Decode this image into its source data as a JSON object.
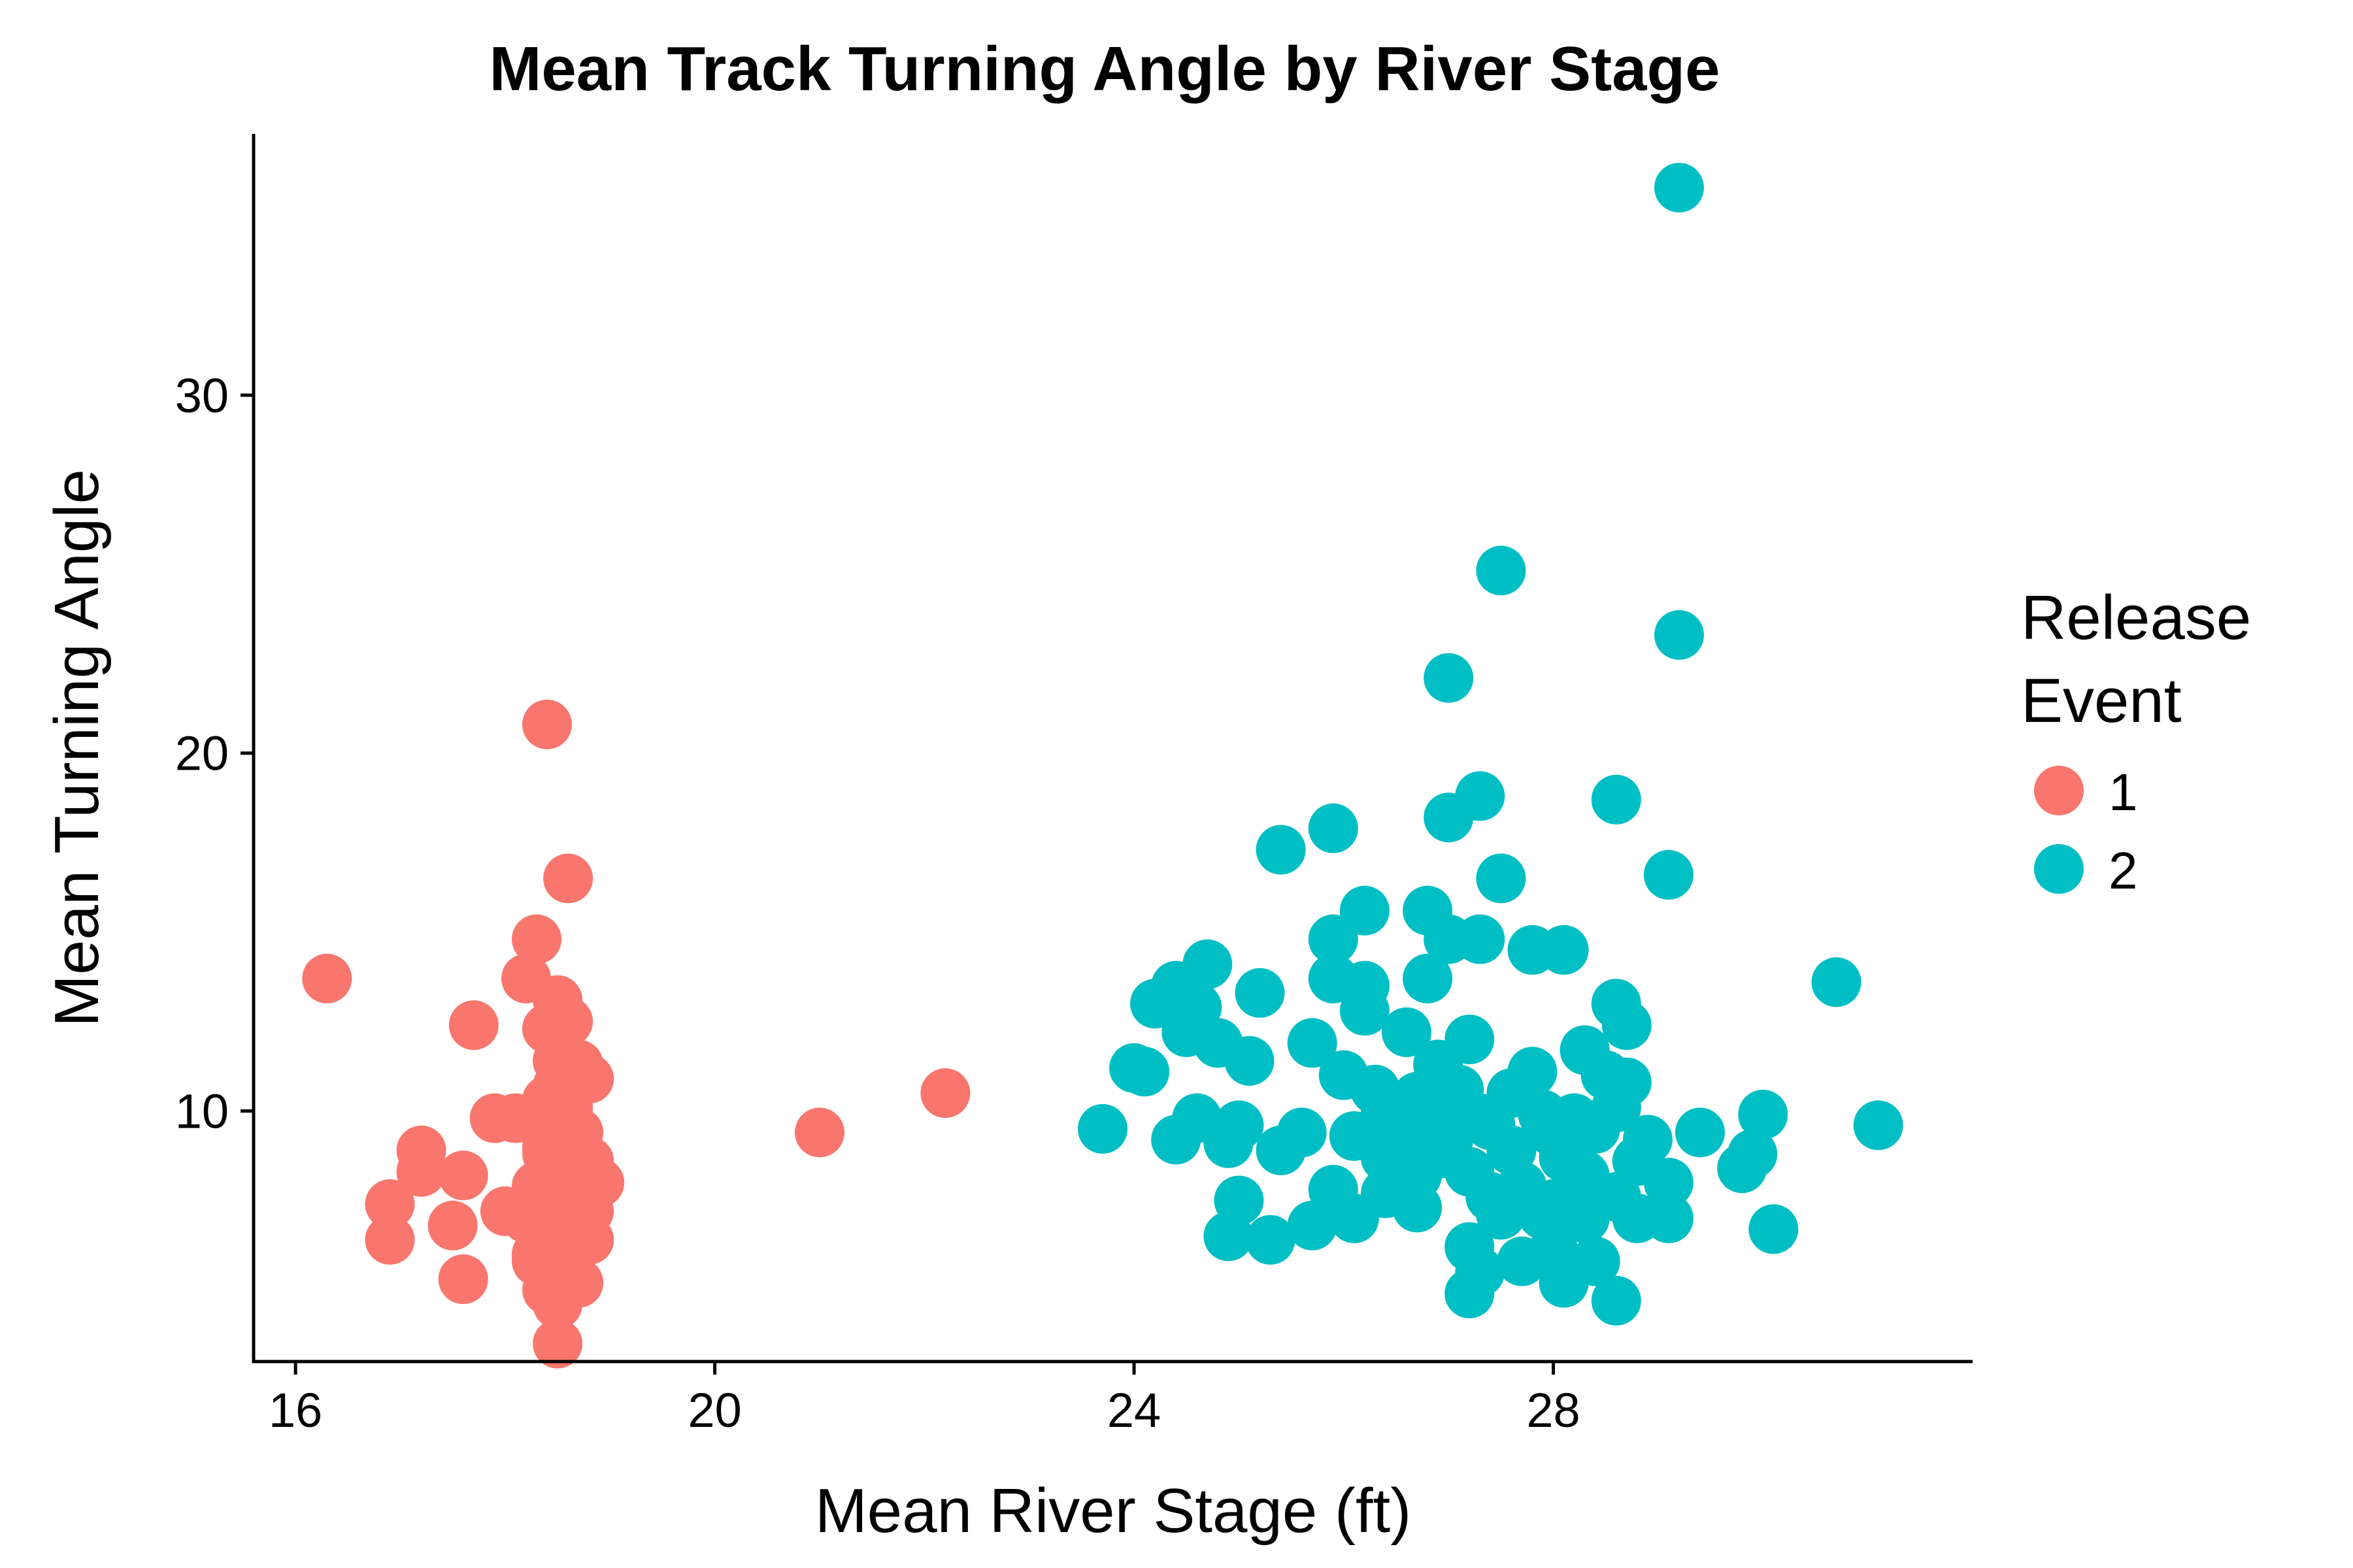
{
  "chart_data": {
    "type": "scatter",
    "title": "Mean Track Turning Angle by River Stage",
    "xlabel": "Mean River Stage (ft)",
    "ylabel": "Mean Turning Angle",
    "xlim": [
      15.6,
      32.0
    ],
    "ylim": [
      3.0,
      37.3
    ],
    "xticks": [
      16,
      20,
      24,
      28
    ],
    "yticks": [
      10,
      20,
      30
    ],
    "grid": false,
    "legend": {
      "title_lines": [
        "Release",
        "Event"
      ],
      "placement": "right"
    },
    "series": [
      {
        "name": "1",
        "color": "#F8766D",
        "points": [
          [
            16.3,
            13.7
          ],
          [
            16.9,
            7.4
          ],
          [
            16.9,
            6.4
          ],
          [
            17.2,
            8.9
          ],
          [
            17.2,
            8.3
          ],
          [
            17.5,
            6.8
          ],
          [
            17.6,
            8.2
          ],
          [
            17.6,
            5.3
          ],
          [
            17.7,
            12.4
          ],
          [
            17.9,
            9.8
          ],
          [
            18.0,
            7.2
          ],
          [
            18.1,
            9.8
          ],
          [
            18.2,
            7.0
          ],
          [
            18.3,
            6.0
          ],
          [
            18.4,
            20.8
          ],
          [
            18.3,
            14.8
          ],
          [
            18.2,
            13.7
          ],
          [
            18.6,
            16.5
          ],
          [
            18.5,
            13.1
          ],
          [
            18.4,
            12.3
          ],
          [
            18.6,
            12.5
          ],
          [
            18.5,
            11.4
          ],
          [
            18.7,
            11.3
          ],
          [
            18.5,
            10.7
          ],
          [
            18.8,
            10.9
          ],
          [
            18.4,
            10.3
          ],
          [
            18.6,
            10.1
          ],
          [
            18.5,
            9.7
          ],
          [
            18.7,
            9.4
          ],
          [
            18.4,
            9.0
          ],
          [
            18.6,
            8.7
          ],
          [
            18.8,
            8.6
          ],
          [
            18.9,
            8.0
          ],
          [
            18.5,
            8.3
          ],
          [
            18.3,
            7.9
          ],
          [
            18.6,
            7.6
          ],
          [
            18.8,
            7.2
          ],
          [
            18.4,
            7.0
          ],
          [
            18.6,
            6.6
          ],
          [
            18.8,
            6.4
          ],
          [
            18.5,
            6.1
          ],
          [
            18.3,
            5.8
          ],
          [
            18.6,
            5.5
          ],
          [
            18.4,
            5.0
          ],
          [
            18.5,
            4.6
          ],
          [
            18.5,
            3.5
          ],
          [
            18.7,
            5.2
          ],
          [
            18.4,
            8.8
          ],
          [
            21.0,
            9.4
          ],
          [
            22.2,
            10.5
          ]
        ]
      },
      {
        "name": "2",
        "color": "#00BFC4",
        "points": [
          [
            29.2,
            35.8
          ],
          [
            27.5,
            25.1
          ],
          [
            29.2,
            23.3
          ],
          [
            27.0,
            22.1
          ],
          [
            28.6,
            18.7
          ],
          [
            27.3,
            18.8
          ],
          [
            27.0,
            18.2
          ],
          [
            25.9,
            17.9
          ],
          [
            25.4,
            17.3
          ],
          [
            29.1,
            16.6
          ],
          [
            27.5,
            16.5
          ],
          [
            26.2,
            15.6
          ],
          [
            26.8,
            15.6
          ],
          [
            27.3,
            14.8
          ],
          [
            27.0,
            14.8
          ],
          [
            25.9,
            14.8
          ],
          [
            27.8,
            14.5
          ],
          [
            28.1,
            14.5
          ],
          [
            24.7,
            14.1
          ],
          [
            24.4,
            13.5
          ],
          [
            25.9,
            13.7
          ],
          [
            26.2,
            13.5
          ],
          [
            26.8,
            13.7
          ],
          [
            25.2,
            13.3
          ],
          [
            24.2,
            13.0
          ],
          [
            24.6,
            12.9
          ],
          [
            26.2,
            12.8
          ],
          [
            28.6,
            13.0
          ],
          [
            30.7,
            13.6
          ],
          [
            24.5,
            12.2
          ],
          [
            24.8,
            11.9
          ],
          [
            25.7,
            11.9
          ],
          [
            25.1,
            11.4
          ],
          [
            26.6,
            12.2
          ],
          [
            27.2,
            12.0
          ],
          [
            28.3,
            11.7
          ],
          [
            28.7,
            12.4
          ],
          [
            24.0,
            11.2
          ],
          [
            24.1,
            11.1
          ],
          [
            26.0,
            11.0
          ],
          [
            26.9,
            11.3
          ],
          [
            27.8,
            11.1
          ],
          [
            28.5,
            11.0
          ],
          [
            26.3,
            10.6
          ],
          [
            26.7,
            10.4
          ],
          [
            27.1,
            10.6
          ],
          [
            27.6,
            10.5
          ],
          [
            28.7,
            10.8
          ],
          [
            26.4,
            10.0
          ],
          [
            26.9,
            10.1
          ],
          [
            27.3,
            9.8
          ],
          [
            27.9,
            9.9
          ],
          [
            28.2,
            9.8
          ],
          [
            28.6,
            10.1
          ],
          [
            30.0,
            9.9
          ],
          [
            23.7,
            9.5
          ],
          [
            24.6,
            9.8
          ],
          [
            25.0,
            9.6
          ],
          [
            25.6,
            9.4
          ],
          [
            26.1,
            9.3
          ],
          [
            26.6,
            9.5
          ],
          [
            27.0,
            9.2
          ],
          [
            27.4,
            9.6
          ],
          [
            28.0,
            9.4
          ],
          [
            28.4,
            9.5
          ],
          [
            28.9,
            9.2
          ],
          [
            29.4,
            9.4
          ],
          [
            31.1,
            9.6
          ],
          [
            24.4,
            9.2
          ],
          [
            24.9,
            9.1
          ],
          [
            25.4,
            8.9
          ],
          [
            26.4,
            8.7
          ],
          [
            26.9,
            8.8
          ],
          [
            27.6,
            8.9
          ],
          [
            28.1,
            8.7
          ],
          [
            28.8,
            8.6
          ],
          [
            29.9,
            8.8
          ],
          [
            26.7,
            8.2
          ],
          [
            27.2,
            8.3
          ],
          [
            27.7,
            7.9
          ],
          [
            28.3,
            8.2
          ],
          [
            29.1,
            8.0
          ],
          [
            29.8,
            8.4
          ],
          [
            25.0,
            7.5
          ],
          [
            25.9,
            7.8
          ],
          [
            26.4,
            7.7
          ],
          [
            27.4,
            7.6
          ],
          [
            28.0,
            7.4
          ],
          [
            28.6,
            7.6
          ],
          [
            26.7,
            7.3
          ],
          [
            27.5,
            7.1
          ],
          [
            28.3,
            7.0
          ],
          [
            28.8,
            7.0
          ],
          [
            29.1,
            7.0
          ],
          [
            27.9,
            7.1
          ],
          [
            25.7,
            6.8
          ],
          [
            26.1,
            7.0
          ],
          [
            30.1,
            6.7
          ],
          [
            24.9,
            6.5
          ],
          [
            25.3,
            6.4
          ],
          [
            27.2,
            6.2
          ],
          [
            28.0,
            6.1
          ],
          [
            28.4,
            5.8
          ],
          [
            27.7,
            5.8
          ],
          [
            27.3,
            5.5
          ],
          [
            28.1,
            5.2
          ],
          [
            27.2,
            4.9
          ],
          [
            28.6,
            4.7
          ],
          [
            26.6,
            9.0
          ],
          [
            27.1,
            9.9
          ]
        ]
      }
    ]
  }
}
